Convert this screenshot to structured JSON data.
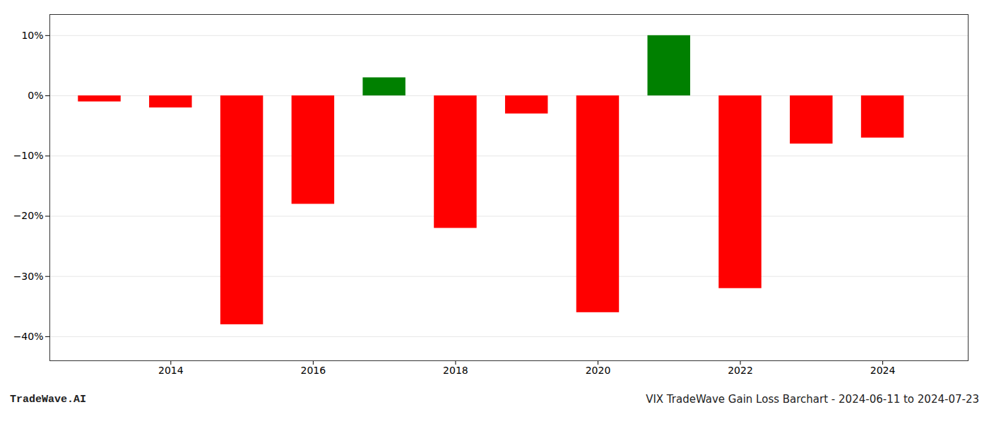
{
  "chart_data": {
    "type": "bar",
    "x": [
      2013,
      2014,
      2015,
      2016,
      2017,
      2018,
      2019,
      2020,
      2021,
      2022,
      2023,
      2024
    ],
    "values": [
      -0.01,
      -0.02,
      -0.38,
      -0.18,
      0.03,
      -0.22,
      -0.03,
      -0.36,
      0.1,
      -0.32,
      -0.08,
      -0.07
    ],
    "colors": [
      "#ff0000",
      "#ff0000",
      "#ff0000",
      "#ff0000",
      "#008000",
      "#ff0000",
      "#ff0000",
      "#ff0000",
      "#008000",
      "#ff0000",
      "#ff0000",
      "#ff0000"
    ],
    "xlim": [
      2012.3,
      2025.2
    ],
    "xticks": [
      2014,
      2016,
      2018,
      2020,
      2022,
      2024
    ],
    "ylim": [
      -0.44,
      0.135
    ],
    "yticks": [
      {
        "value": -0.4,
        "label": "−40%"
      },
      {
        "value": -0.3,
        "label": "−30%"
      },
      {
        "value": -0.2,
        "label": "−20%"
      },
      {
        "value": -0.1,
        "label": "−10%"
      },
      {
        "value": 0.0,
        "label": "0%"
      },
      {
        "value": 0.1,
        "label": "10%"
      }
    ],
    "grid": true,
    "annotations": [
      "TradeWave.AI",
      "VIX TradeWave Gain Loss Barchart - 2024-06-11 to 2024-07-23"
    ]
  }
}
